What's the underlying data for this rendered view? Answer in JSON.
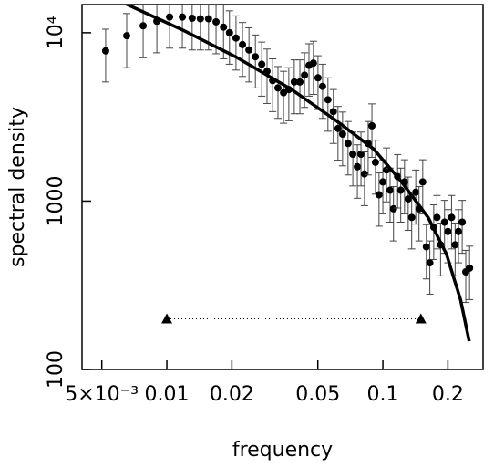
{
  "chart_data": {
    "type": "scatter",
    "xlabel": "frequency",
    "ylabel": "spectral density",
    "xscale": "log",
    "yscale": "log",
    "xlim": [
      0.00405,
      0.291
    ],
    "ylim": [
      100,
      14700
    ],
    "xticks": [
      {
        "value": 0.005,
        "label": "5×10⁻³"
      },
      0.01,
      0.02,
      0.05,
      0.1,
      0.2
    ],
    "yticks": [
      100,
      1000,
      {
        "value": 10000,
        "label": "10⁴"
      }
    ],
    "color": "#000000",
    "points": {
      "x": [
        0.00521,
        0.00652,
        0.00777,
        0.00899,
        0.0103,
        0.0118,
        0.0131,
        0.0143,
        0.0156,
        0.0169,
        0.0183,
        0.0195,
        0.0209,
        0.0224,
        0.024,
        0.0257,
        0.0275,
        0.0291,
        0.0309,
        0.0327,
        0.0347,
        0.0367,
        0.0389,
        0.0413,
        0.0434,
        0.0455,
        0.0477,
        0.0501,
        0.0526,
        0.0557,
        0.059,
        0.062,
        0.0651,
        0.069,
        0.0726,
        0.0762,
        0.0792,
        0.0822,
        0.0855,
        0.089,
        0.0924,
        0.096,
        0.1,
        0.104,
        0.108,
        0.112,
        0.117,
        0.121,
        0.126,
        0.131,
        0.136,
        0.142,
        0.147,
        0.153,
        0.159,
        0.165,
        0.172,
        0.178,
        0.185,
        0.193,
        0.2,
        0.208,
        0.216,
        0.224,
        0.233,
        0.242,
        0.252
      ],
      "values": [
        7800,
        9600,
        11000,
        11700,
        12400,
        12400,
        12200,
        12100,
        12100,
        11600,
        10800,
        10000,
        9300,
        8500,
        7900,
        7200,
        6500,
        5900,
        5200,
        4700,
        4400,
        4600,
        5100,
        5100,
        5600,
        6400,
        6600,
        5400,
        4800,
        4000,
        3400,
        2700,
        2500,
        2200,
        1900,
        1600,
        1900,
        1450,
        2200,
        2800,
        1700,
        1090,
        1300,
        1530,
        1160,
        900,
        1400,
        1160,
        1300,
        1030,
        800,
        1130,
        900,
        1300,
        535,
        430,
        700,
        800,
        550,
        750,
        660,
        800,
        550,
        660,
        750,
        380,
        400
      ],
      "errors": [
        2700,
        3400,
        3900,
        4100,
        4300,
        4300,
        4300,
        4200,
        4200,
        4100,
        3800,
        3500,
        3300,
        3000,
        2800,
        2500,
        2300,
        2100,
        1800,
        1600,
        1500,
        1600,
        1800,
        1800,
        2000,
        2200,
        2300,
        1900,
        1700,
        1400,
        1200,
        950,
        880,
        770,
        670,
        560,
        670,
        510,
        770,
        980,
        600,
        380,
        460,
        540,
        410,
        320,
        490,
        410,
        460,
        360,
        280,
        400,
        320,
        460,
        190,
        150,
        250,
        280,
        190,
        260,
        230,
        280,
        190,
        230,
        260,
        130,
        140
      ]
    },
    "fit": {
      "x": [
        0.00627,
        0.0118,
        0.0211,
        0.0378,
        0.0616,
        0.0906,
        0.121,
        0.162,
        0.197,
        0.229,
        0.251
      ],
      "values": [
        15100,
        10400,
        7130,
        4600,
        2970,
        2040,
        1320,
        800,
        484,
        259,
        147
      ]
    },
    "interval": {
      "x": [
        0.01,
        0.15
      ],
      "values": [
        200,
        200
      ]
    }
  }
}
